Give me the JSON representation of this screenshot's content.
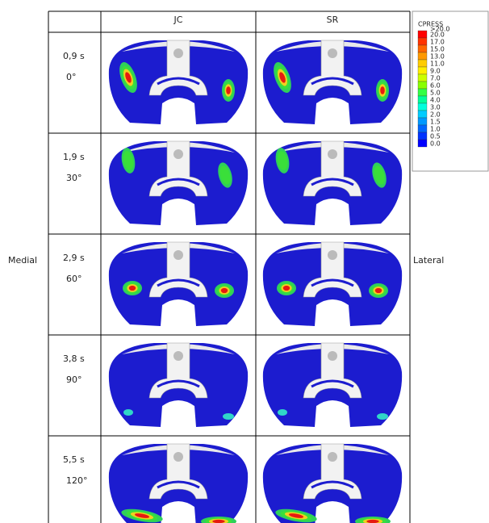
{
  "header": {
    "columns": [
      "JC",
      "SR"
    ]
  },
  "rows": [
    {
      "time": "0,9 s",
      "angle": "0°"
    },
    {
      "time": "1,9 s",
      "angle": "30°"
    },
    {
      "time": "2,9 s",
      "angle": "60°"
    },
    {
      "time": "3,8 s",
      "angle": "90°"
    },
    {
      "time": "5,5 s",
      "angle": "120°"
    }
  ],
  "side_labels": {
    "left": "Medial",
    "right": "Lateral"
  },
  "legend": {
    "title": "CPRESS",
    "labels": [
      ">20.0",
      "20.0",
      "17.0",
      "15.0",
      "13.0",
      "11.0",
      "9.0",
      "7.0",
      "6.0",
      "5.0",
      "4.0",
      "3.0",
      "2.0",
      "1.5",
      "1.0",
      "0.5",
      "0.0"
    ]
  }
}
